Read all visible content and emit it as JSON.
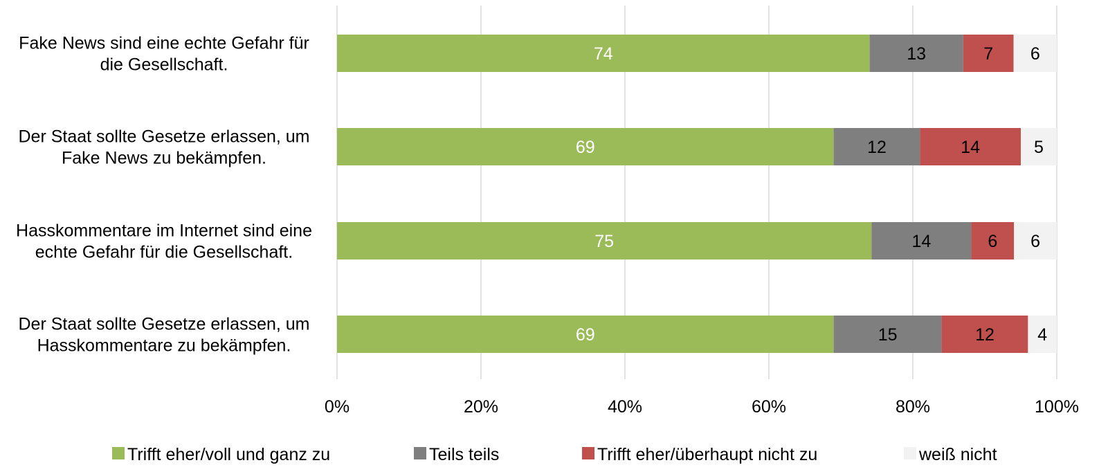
{
  "chart_data": {
    "type": "bar",
    "orientation": "horizontal",
    "stacked": "percent",
    "categories": [
      [
        "Fake News sind eine echte Gefahr für",
        "die Gesellschaft."
      ],
      [
        "Der Staat sollte Gesetze erlassen, um",
        "Fake News zu bekämpfen."
      ],
      [
        "Hasskommentare im Internet sind eine",
        "echte Gefahr für die Gesellschaft."
      ],
      [
        "Der Staat sollte Gesetze erlassen, um",
        "Hasskommentare zu bekämpfen."
      ]
    ],
    "series": [
      {
        "name": "Trifft eher/voll und ganz zu",
        "color": "#9bbb59",
        "label_color": "#ffffff",
        "values": [
          74,
          69,
          75,
          69
        ]
      },
      {
        "name": "Teils teils",
        "color": "#7f7f7f",
        "label_color": "#000000",
        "values": [
          13,
          12,
          14,
          15
        ]
      },
      {
        "name": "Trifft eher/überhaupt nicht zu",
        "color": "#c0504d",
        "label_color": "#000000",
        "values": [
          7,
          14,
          6,
          12
        ]
      },
      {
        "name": "weiß nicht",
        "color": "#f2f2f2",
        "label_color": "#000000",
        "values": [
          6,
          5,
          6,
          4
        ]
      }
    ],
    "x_ticks": [
      "0%",
      "20%",
      "40%",
      "60%",
      "80%",
      "100%"
    ],
    "xlim": [
      0,
      100
    ],
    "grid": true,
    "legend_position": "bottom"
  }
}
